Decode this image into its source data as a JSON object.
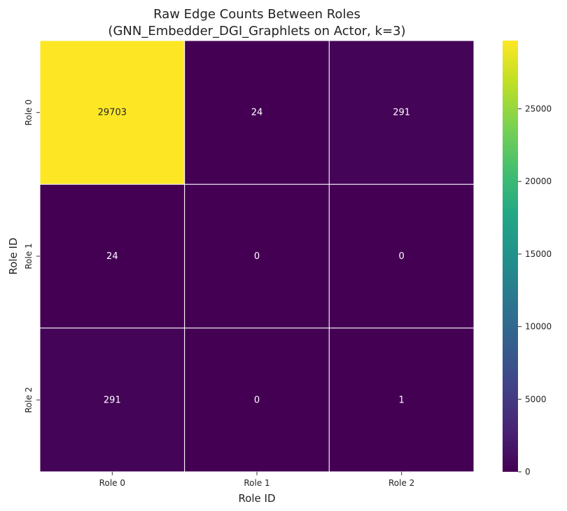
{
  "chart_data": {
    "type": "heatmap",
    "title": [
      "Raw Edge Counts Between Roles",
      "(GNN_Embedder_DGI_Graphlets on Actor, k=3)"
    ],
    "xlabel": "Role ID",
    "ylabel": "Role ID",
    "x_categories": [
      "Role 0",
      "Role 1",
      "Role 2"
    ],
    "y_categories": [
      "Role 0",
      "Role 1",
      "Role 2"
    ],
    "values": [
      [
        29703,
        24,
        291
      ],
      [
        24,
        0,
        0
      ],
      [
        291,
        0,
        1
      ]
    ],
    "colormap": "viridis",
    "color_range": [
      0,
      29703
    ],
    "colorbar_ticks": [
      0,
      5000,
      10000,
      15000,
      20000,
      25000
    ],
    "annotated": true,
    "cell_border_color": "#ffffff"
  }
}
